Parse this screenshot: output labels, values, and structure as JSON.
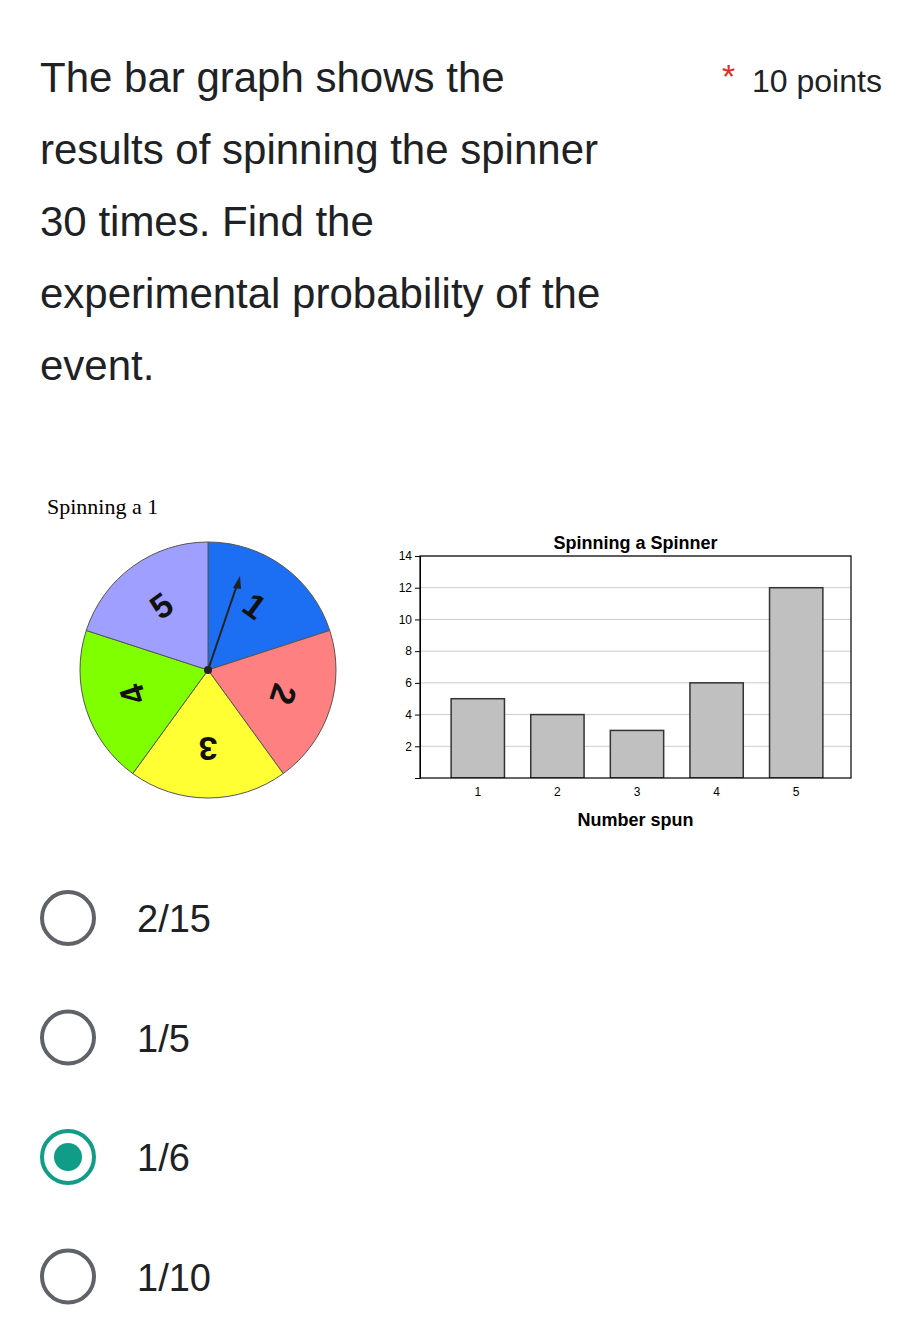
{
  "question": {
    "lines": [
      "The bar graph shows the",
      "results of spinning the spinner",
      "30 times. Find the",
      "experimental probability of the",
      "event."
    ],
    "required_mark": "*",
    "points": "10 points"
  },
  "spinner": {
    "title": "Spinning a 1",
    "sectors": [
      {
        "label": "1",
        "color": "#1c6ff2"
      },
      {
        "label": "2",
        "color": "#ff8080"
      },
      {
        "label": "3",
        "color": "#ffff33"
      },
      {
        "label": "4",
        "color": "#80ff00"
      },
      {
        "label": "5",
        "color": "#9f9fff"
      }
    ]
  },
  "chart_data": {
    "type": "bar",
    "title": "Spinning a Spinner",
    "x_label": "Number spun",
    "categories": [
      "1",
      "2",
      "3",
      "4",
      "5"
    ],
    "values": [
      5,
      4,
      3,
      6,
      12
    ],
    "color": "#c0c0c0",
    "ylim": [
      0,
      14
    ],
    "yticks": [
      2,
      4,
      6,
      8,
      10,
      12,
      14
    ],
    "grid": true
  },
  "options": [
    {
      "label": "2/15",
      "selected": false
    },
    {
      "label": "1/5",
      "selected": false
    },
    {
      "label": "1/6",
      "selected": true
    },
    {
      "label": "1/10",
      "selected": false
    }
  ]
}
